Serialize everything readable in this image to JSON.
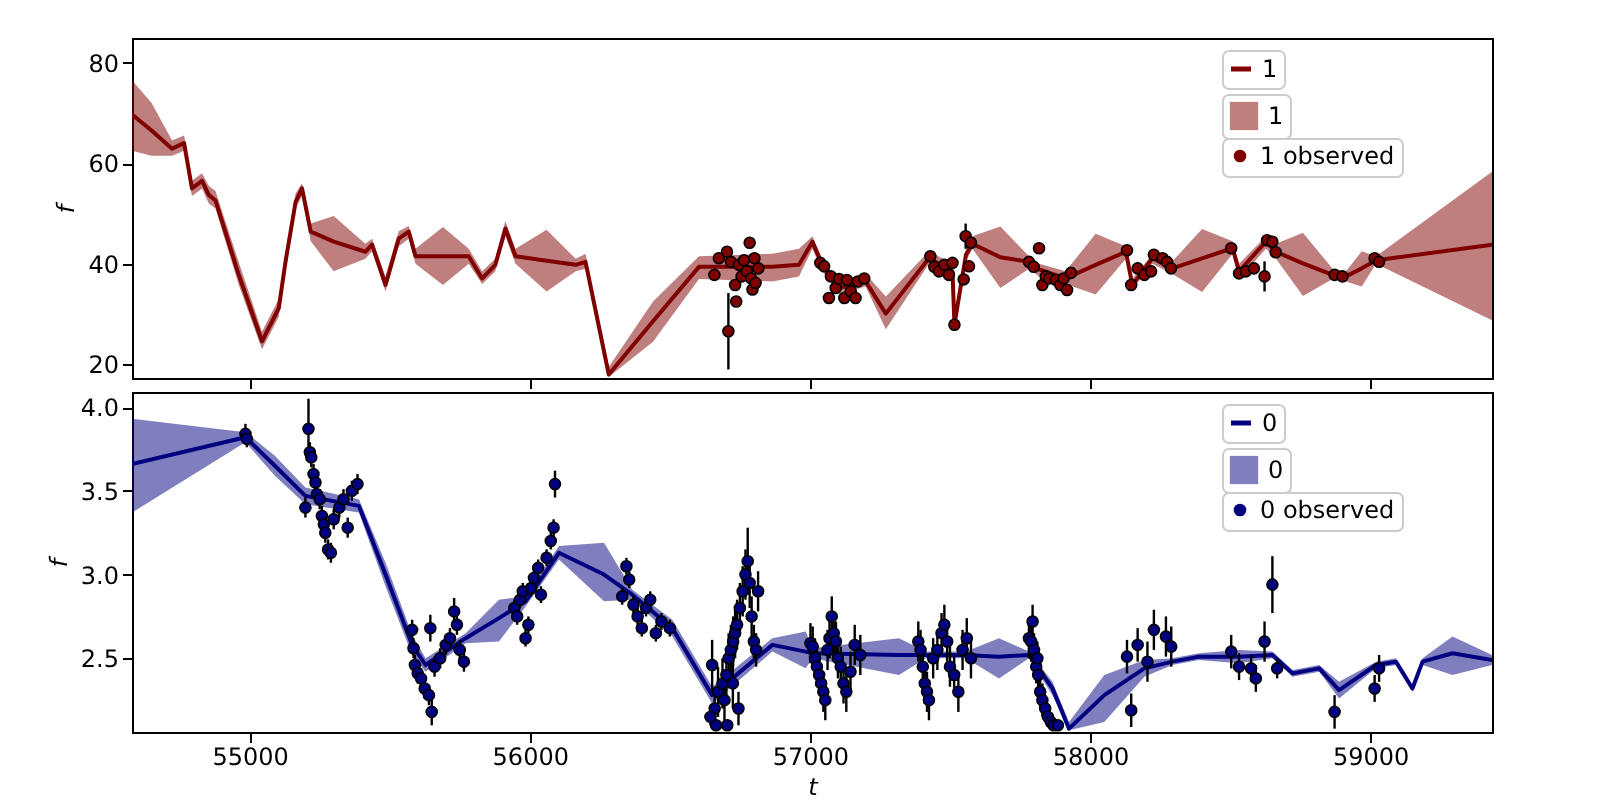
{
  "chart_data": [
    {
      "type": "line",
      "ylabel": "f",
      "xlim": [
        54580,
        59435
      ],
      "xticks": [
        55000,
        56000,
        57000,
        58000,
        59000
      ],
      "ylim": [
        17.3,
        84.9
      ],
      "yticks": [
        20,
        40,
        60,
        80
      ],
      "tick_labels": "y",
      "legend": "top right",
      "grid": false,
      "series": [
        {
          "name": "1",
          "color": "#800000",
          "x": [
            54580,
            54650,
            54723,
            54766,
            54794,
            54830,
            54854,
            54878,
            54960,
            55044,
            55104,
            55128,
            55164,
            55187,
            55218,
            55300,
            55413,
            55437,
            55485,
            55532,
            55568,
            55592,
            55690,
            55782,
            55830,
            55877,
            55913,
            55949,
            56060,
            56164,
            56199,
            56282,
            56440,
            56604,
            56866,
            56961,
            57009,
            57044,
            57104,
            57199,
            57271,
            57425,
            57509,
            57516,
            57557,
            57580,
            57680,
            57782,
            57818,
            57913,
            58020,
            58128,
            58151,
            58223,
            58294,
            58400,
            58509,
            58532,
            58628,
            58664,
            58760,
            58866,
            58914,
            58970,
            59021,
            59435
          ],
          "values": [
            69.7,
            66.5,
            62.9,
            64,
            55,
            56.5,
            53.7,
            52.6,
            38,
            24.6,
            31.2,
            40.4,
            52.3,
            55,
            46.4,
            44.4,
            42.4,
            43.8,
            35.8,
            45,
            46.4,
            41.5,
            41.5,
            41.5,
            37.1,
            39.8,
            47,
            41.5,
            40.6,
            39.8,
            40.4,
            18,
            28.6,
            39.4,
            39.4,
            39.8,
            44.4,
            39.8,
            35.2,
            36.5,
            30.1,
            41.1,
            38.5,
            27.9,
            41.8,
            44,
            41.3,
            40.4,
            38.9,
            37.1,
            39.8,
            42.4,
            35.8,
            41.1,
            39.1,
            41.1,
            43.1,
            38.5,
            44.4,
            42.4,
            40.1,
            37.8,
            37.5,
            39.1,
            40.7,
            43.8
          ],
          "lower": [
            62.5,
            61.5,
            61.5,
            62.5,
            53.5,
            55,
            52,
            51,
            36,
            23,
            29.5,
            39,
            51,
            53.5,
            44.5,
            38.5,
            41,
            42.5,
            34.5,
            43.5,
            45,
            40,
            35.8,
            40,
            36,
            38.5,
            45.5,
            40,
            34.5,
            38.5,
            39,
            17.5,
            24.5,
            37,
            36.5,
            37.5,
            43,
            38.5,
            34,
            35.5,
            27,
            40,
            37.5,
            27,
            40.5,
            43,
            35.2,
            39,
            37.5,
            36,
            33.9,
            41,
            35,
            40,
            38,
            34.4,
            42,
            37,
            43,
            41,
            33.6,
            37,
            36.5,
            35.5,
            40,
            28.8
          ],
          "upper": [
            76.5,
            72,
            64.5,
            65.5,
            56.5,
            58,
            55.5,
            54.5,
            40.5,
            26.5,
            33,
            42,
            54,
            56,
            48,
            49.5,
            44,
            45,
            37.5,
            46.5,
            47.5,
            43,
            47.3,
            43,
            38.5,
            41,
            48.5,
            43,
            46.8,
            41,
            42,
            19.5,
            32.5,
            41.5,
            42,
            43,
            45.5,
            41,
            36.5,
            38,
            33.5,
            42.5,
            40,
            29,
            43,
            45.5,
            47.4,
            41.5,
            40,
            38.5,
            46,
            43.5,
            37,
            42,
            40.5,
            46.9,
            44.5,
            40,
            45.5,
            44,
            46.2,
            39,
            38.5,
            42.5,
            41.5,
            58.3
          ]
        },
        {
          "name": "1 observed",
          "type": "scatter",
          "marker": "circle",
          "color": "#800000",
          "x": [
            56659,
            56675,
            56704,
            56709,
            56718,
            56733,
            56737,
            56747,
            56756,
            56765,
            56775,
            56785,
            56790,
            56795,
            56802,
            56806,
            56816,
            57037,
            57051,
            57068,
            57075,
            57092,
            57104,
            57123,
            57132,
            57146,
            57163,
            57171,
            57194,
            57430,
            57444,
            57461,
            57480,
            57496,
            57509,
            57516,
            57549,
            57556,
            57568,
            57575,
            57782,
            57799,
            57818,
            57830,
            57842,
            57854,
            57878,
            57894,
            57906,
            57918,
            57932,
            58132,
            58147,
            58170,
            58194,
            58218,
            58228,
            58259,
            58275,
            58289,
            58504,
            58532,
            58556,
            58585,
            58623,
            58632,
            58651,
            58663,
            58873,
            58901,
            59016,
            59032
          ],
          "values": [
            37.8,
            41.1,
            42.4,
            26.6,
            40.4,
            35.8,
            32.5,
            39.8,
            37.5,
            40.7,
            38.5,
            44.2,
            37.1,
            34.9,
            41.1,
            36.2,
            39.1,
            40.2,
            39.5,
            33.2,
            37.5,
            35.2,
            37,
            33.2,
            36.8,
            34.5,
            33.2,
            36.5,
            37.1,
            41.5,
            39.4,
            38.5,
            39.8,
            37.8,
            40.2,
            27.9,
            36.9,
            45.5,
            39.5,
            44.2,
            40.4,
            39.4,
            43.1,
            35.8,
            37.5,
            37.1,
            36.8,
            35.8,
            37.1,
            34.8,
            38.2,
            42.7,
            35.8,
            39.1,
            37.8,
            38.5,
            41.8,
            41.1,
            40.4,
            39.1,
            43.1,
            38.1,
            38.5,
            39.1,
            37.5,
            44.7,
            44.4,
            42.3,
            37.8,
            37.5,
            41.1,
            40.4
          ],
          "errors": [
            1,
            1,
            1,
            7.6,
            1,
            1,
            1,
            1,
            1,
            1,
            1,
            1,
            1,
            1,
            1,
            1,
            1,
            1,
            1,
            1,
            1,
            1,
            1,
            1,
            1,
            1,
            1,
            1,
            1,
            1,
            1,
            1,
            1,
            1,
            1,
            1,
            1,
            2.5,
            1,
            1,
            1,
            1,
            1,
            1,
            1,
            1,
            1,
            1,
            1,
            1,
            1,
            1,
            1,
            1,
            1,
            1,
            1,
            1,
            1,
            1,
            1,
            1,
            1,
            1,
            3,
            1,
            1,
            1,
            1,
            1,
            1,
            1
          ]
        }
      ]
    },
    {
      "type": "line",
      "xlabel": "t",
      "ylabel": "f",
      "xlim": [
        54580,
        59435
      ],
      "xticks": [
        55000,
        56000,
        57000,
        58000,
        59000
      ],
      "ylim": [
        2.06,
        4.09
      ],
      "yticks": [
        2.5,
        {
          "value": 3,
          "label": "3.0"
        },
        3.5,
        {
          "value": 4,
          "label": "4.0"
        }
      ],
      "legend": "top right",
      "grid": false,
      "series": [
        {
          "name": "0",
          "color": "#000080",
          "x": [
            54580,
            54985,
            55090,
            55199,
            55390,
            55485,
            55580,
            55628,
            55771,
            55890,
            55985,
            56104,
            56265,
            56366,
            56509,
            56651,
            56866,
            56985,
            57009,
            57318,
            57414,
            57557,
            57675,
            57782,
            57866,
            57925,
            58051,
            58194,
            58294,
            58389,
            58532,
            58651,
            58723,
            58818,
            58889,
            59021,
            59092,
            59151,
            59187,
            59294,
            59435
          ],
          "values": [
            3.66,
            3.82,
            3.65,
            3.47,
            3.41,
            3.0,
            2.58,
            2.46,
            2.62,
            2.74,
            2.84,
            3.13,
            3.0,
            2.88,
            2.68,
            2.28,
            2.58,
            2.54,
            2.53,
            2.52,
            2.52,
            2.52,
            2.51,
            2.52,
            2.32,
            2.08,
            2.28,
            2.44,
            2.48,
            2.51,
            2.51,
            2.52,
            2.41,
            2.44,
            2.31,
            2.46,
            2.48,
            2.32,
            2.48,
            2.53,
            2.49
          ],
          "lower": [
            3.37,
            3.79,
            3.59,
            3.42,
            3.37,
            2.93,
            2.52,
            2.42,
            2.59,
            2.6,
            2.81,
            3.09,
            2.84,
            2.85,
            2.63,
            2.23,
            2.54,
            2.44,
            2.5,
            2.4,
            2.5,
            2.5,
            2.38,
            2.5,
            2.28,
            2.07,
            2.12,
            2.39,
            2.46,
            2.49,
            2.47,
            2.5,
            2.39,
            2.42,
            2.26,
            2.44,
            2.46,
            2.3,
            2.46,
            2.4,
            2.46
          ],
          "upper": [
            3.93,
            3.85,
            3.71,
            3.52,
            3.45,
            3.07,
            2.64,
            2.5,
            2.65,
            2.85,
            2.87,
            3.17,
            3.19,
            2.91,
            2.73,
            2.33,
            2.62,
            2.66,
            2.56,
            2.62,
            2.54,
            2.54,
            2.62,
            2.54,
            2.36,
            2.12,
            2.4,
            2.49,
            2.5,
            2.53,
            2.55,
            2.54,
            2.43,
            2.46,
            2.36,
            2.48,
            2.5,
            2.34,
            2.5,
            2.63,
            2.52
          ]
        },
        {
          "name": "0 observed",
          "type": "scatter",
          "marker": "circle",
          "color": "#000080",
          "x": [
            54985,
            54990,
            55199,
            55210,
            55215,
            55220,
            55228,
            55235,
            55240,
            55250,
            55258,
            55265,
            55270,
            55280,
            55290,
            55300,
            55320,
            55335,
            55350,
            55365,
            55385,
            55580,
            55585,
            55590,
            55600,
            55612,
            55625,
            55640,
            55650,
            55645,
            55660,
            55680,
            55700,
            55715,
            55730,
            55740,
            55750,
            55765,
            55945,
            55955,
            55965,
            55975,
            55985,
            55995,
            56005,
            56015,
            56030,
            56040,
            56060,
            56075,
            56085,
            56090,
            56330,
            56345,
            56355,
            56370,
            56385,
            56400,
            56415,
            56430,
            56450,
            56470,
            56500,
            56651,
            56660,
            56665,
            56672,
            56645,
            56688,
            56695,
            56702,
            56710,
            56718,
            56726,
            56733,
            56740,
            56750,
            56760,
            56770,
            56778,
            56785,
            56792,
            56800,
            56808,
            56815,
            56725,
            56745,
            56705,
            57002,
            57010,
            57018,
            57025,
            57033,
            57040,
            57048,
            57055,
            57063,
            57070,
            57078,
            57085,
            57093,
            57100,
            57110,
            57120,
            57130,
            57145,
            57160,
            57180,
            57387,
            57395,
            57403,
            57410,
            57418,
            57425,
            57440,
            57455,
            57470,
            57480,
            57490,
            57500,
            57515,
            57530,
            57545,
            57560,
            57575,
            57782,
            57790,
            57800,
            57808,
            57815,
            57822,
            57830,
            57840,
            57850,
            57860,
            57870,
            57885,
            57795,
            57812,
            58132,
            58147,
            58170,
            58205,
            58228,
            58271,
            58290,
            58504,
            58532,
            58575,
            58592,
            58623,
            58651,
            58668,
            58873,
            59016,
            59032
          ],
          "values": [
            3.84,
            3.81,
            3.4,
            3.87,
            3.73,
            3.7,
            3.6,
            3.55,
            3.48,
            3.45,
            3.35,
            3.3,
            3.25,
            3.15,
            3.13,
            3.33,
            3.4,
            3.45,
            3.28,
            3.5,
            3.54,
            2.67,
            2.56,
            2.46,
            2.41,
            2.38,
            2.32,
            2.28,
            2.18,
            2.68,
            2.45,
            2.5,
            2.58,
            2.62,
            2.78,
            2.7,
            2.55,
            2.48,
            2.8,
            2.75,
            2.85,
            2.9,
            2.62,
            2.7,
            2.92,
            2.98,
            3.04,
            2.88,
            3.1,
            3.2,
            3.28,
            3.54,
            2.87,
            3.05,
            2.97,
            2.82,
            2.75,
            2.68,
            2.8,
            2.85,
            2.65,
            2.72,
            2.68,
            2.46,
            2.2,
            2.1,
            2.3,
            2.15,
            2.35,
            2.25,
            2.4,
            2.5,
            2.55,
            2.6,
            2.65,
            2.7,
            2.8,
            2.9,
            3.0,
            3.08,
            2.95,
            2.75,
            2.6,
            2.55,
            2.9,
            2.35,
            2.2,
            2.1,
            2.59,
            2.57,
            2.5,
            2.45,
            2.4,
            2.35,
            2.3,
            2.25,
            2.55,
            2.62,
            2.75,
            2.65,
            2.6,
            2.5,
            2.45,
            2.35,
            2.3,
            2.42,
            2.58,
            2.52,
            2.6,
            2.55,
            2.45,
            2.35,
            2.3,
            2.25,
            2.5,
            2.55,
            2.65,
            2.7,
            2.6,
            2.45,
            2.4,
            2.3,
            2.55,
            2.62,
            2.5,
            2.62,
            2.6,
            2.55,
            2.45,
            2.4,
            2.3,
            2.25,
            2.2,
            2.15,
            2.12,
            2.1,
            2.1,
            2.72,
            2.5,
            2.51,
            2.19,
            2.58,
            2.48,
            2.67,
            2.63,
            2.57,
            2.54,
            2.45,
            2.44,
            2.38,
            2.6,
            2.94,
            2.44,
            2.18,
            2.32,
            2.44
          ],
          "errors": [
            0.06,
            0.05,
            0.06,
            0.18,
            0.06,
            0.06,
            0.06,
            0.06,
            0.06,
            0.06,
            0.06,
            0.06,
            0.06,
            0.06,
            0.06,
            0.06,
            0.06,
            0.06,
            0.06,
            0.06,
            0.06,
            0.06,
            0.06,
            0.06,
            0.06,
            0.06,
            0.06,
            0.06,
            0.08,
            0.08,
            0.06,
            0.06,
            0.06,
            0.06,
            0.08,
            0.06,
            0.06,
            0.06,
            0.05,
            0.05,
            0.05,
            0.05,
            0.05,
            0.05,
            0.05,
            0.05,
            0.05,
            0.05,
            0.05,
            0.05,
            0.05,
            0.08,
            0.05,
            0.05,
            0.05,
            0.05,
            0.05,
            0.05,
            0.05,
            0.05,
            0.05,
            0.05,
            0.05,
            0.15,
            0.1,
            0.03,
            0.15,
            0.05,
            0.15,
            0.12,
            0.15,
            0.15,
            0.15,
            0.15,
            0.15,
            0.15,
            0.15,
            0.15,
            0.15,
            0.2,
            0.15,
            0.12,
            0.1,
            0.1,
            0.12,
            0.15,
            0.1,
            0.03,
            0.12,
            0.12,
            0.12,
            0.12,
            0.12,
            0.12,
            0.12,
            0.12,
            0.12,
            0.12,
            0.12,
            0.12,
            0.12,
            0.12,
            0.12,
            0.12,
            0.12,
            0.12,
            0.12,
            0.12,
            0.12,
            0.12,
            0.12,
            0.12,
            0.12,
            0.12,
            0.12,
            0.12,
            0.12,
            0.12,
            0.12,
            0.12,
            0.12,
            0.12,
            0.12,
            0.12,
            0.12,
            0.12,
            0.12,
            0.1,
            0.1,
            0.1,
            0.1,
            0.1,
            0.08,
            0.06,
            0.04,
            0.03,
            0.03,
            0.1,
            0.1,
            0.1,
            0.1,
            0.1,
            0.12,
            0.12,
            0.12,
            0.12,
            0.1,
            0.08,
            0.08,
            0.08,
            0.12,
            0.17,
            0.06,
            0.1,
            0.08,
            0.08
          ]
        }
      ]
    }
  ]
}
